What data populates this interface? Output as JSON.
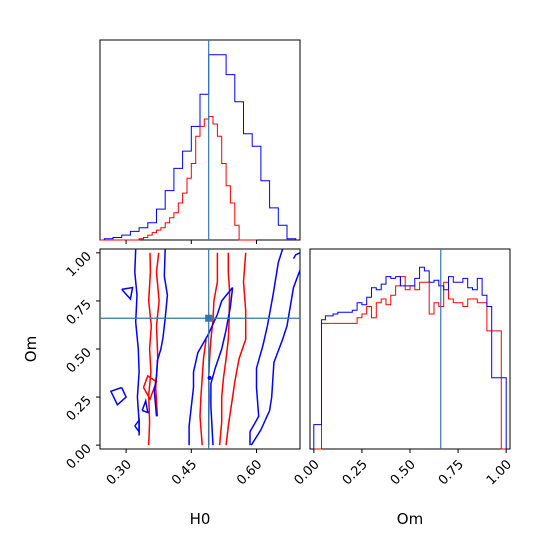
{
  "chart_data": [
    {
      "panel": "H0 marginal",
      "type": "step-histogram",
      "x_range": [
        0.24,
        0.7
      ],
      "truth_x": 0.49,
      "series": [
        {
          "color": "#ff0000",
          "bins": [
            0.24,
            0.25,
            0.26,
            0.27,
            0.28,
            0.29,
            0.3,
            0.31,
            0.32,
            0.33,
            0.34,
            0.35,
            0.36,
            0.37,
            0.38,
            0.39,
            0.4,
            0.41,
            0.42,
            0.43,
            0.44,
            0.45,
            0.46,
            0.47,
            0.48,
            0.49,
            0.5,
            0.51,
            0.52,
            0.53,
            0.54,
            0.55,
            0.56,
            0.57,
            0.58,
            0.59
          ],
          "counts": [
            0,
            0,
            0,
            0,
            0,
            0,
            0,
            0,
            0,
            1,
            2,
            4,
            6,
            8,
            10,
            14,
            18,
            22,
            30,
            38,
            50,
            62,
            84,
            92,
            98,
            100,
            94,
            84,
            62,
            44,
            30,
            12,
            0,
            0,
            0,
            0
          ]
        },
        {
          "color": "#0000ff",
          "bins": [
            0.25,
            0.27,
            0.29,
            0.31,
            0.33,
            0.35,
            0.37,
            0.39,
            0.41,
            0.43,
            0.45,
            0.47,
            0.49,
            0.51,
            0.53,
            0.55,
            0.57,
            0.59,
            0.61,
            0.63,
            0.65,
            0.67
          ],
          "counts": [
            1,
            2,
            4,
            7,
            10,
            14,
            25,
            40,
            58,
            72,
            92,
            118,
            150,
            150,
            134,
            112,
            86,
            76,
            48,
            26,
            12,
            1
          ]
        }
      ]
    },
    {
      "panel": "H0 vs Om contours",
      "type": "contour",
      "x_range": [
        0.24,
        0.7
      ],
      "y_range": [
        -0.02,
        1.02
      ],
      "truth_point": [
        0.49,
        0.66
      ],
      "series": [
        {
          "color": "#ff0000",
          "lines": [
            [
              [
                0.355,
                1.0
              ],
              [
                0.356,
                0.9
              ],
              [
                0.352,
                0.75
              ],
              [
                0.358,
                0.62
              ],
              [
                0.354,
                0.5
              ],
              [
                0.357,
                0.38
              ],
              [
                0.352,
                0.26
              ],
              [
                0.354,
                0.12
              ],
              [
                0.352,
                0.0
              ]
            ],
            [
              [
                0.375,
                1.0
              ],
              [
                0.37,
                0.9
              ],
              [
                0.376,
                0.75
              ],
              [
                0.37,
                0.62
              ],
              [
                0.373,
                0.45
              ],
              [
                0.368,
                0.3
              ],
              [
                0.372,
                0.15
              ]
            ],
            [
              [
                0.34,
                0.3
              ],
              [
                0.35,
                0.36
              ],
              [
                0.37,
                0.33
              ],
              [
                0.355,
                0.24
              ],
              [
                0.34,
                0.3
              ]
            ],
            [
              [
                0.475,
                0.0
              ],
              [
                0.47,
                0.15
              ],
              [
                0.472,
                0.25
              ],
              [
                0.475,
                0.35
              ],
              [
                0.478,
                0.45
              ],
              [
                0.484,
                0.55
              ]
            ],
            [
              [
                0.49,
                0.0
              ],
              [
                0.49,
                0.12
              ],
              [
                0.491,
                0.25
              ],
              [
                0.49,
                0.35
              ],
              [
                0.492,
                0.45
              ],
              [
                0.495,
                0.55
              ],
              [
                0.5,
                0.65
              ],
              [
                0.502,
                0.75
              ],
              [
                0.51,
                0.85
              ],
              [
                0.51,
                1.0
              ]
            ],
            [
              [
                0.515,
                0.0
              ],
              [
                0.52,
                0.12
              ],
              [
                0.52,
                0.25
              ],
              [
                0.524,
                0.35
              ],
              [
                0.53,
                0.45
              ],
              [
                0.535,
                0.55
              ],
              [
                0.537,
                0.65
              ],
              [
                0.538,
                0.8
              ],
              [
                0.535,
                0.9
              ],
              [
                0.535,
                1.0
              ]
            ],
            [
              [
                0.53,
                0.0
              ],
              [
                0.535,
                0.1
              ],
              [
                0.545,
                0.25
              ],
              [
                0.55,
                0.33
              ],
              [
                0.56,
                0.45
              ],
              [
                0.575,
                0.55
              ],
              [
                0.575,
                0.7
              ],
              [
                0.57,
                0.85
              ],
              [
                0.575,
                1.0
              ]
            ]
          ]
        },
        {
          "color": "#0000ff",
          "lines": [
            [
              [
                0.322,
                1.02
              ],
              [
                0.32,
                0.9
              ],
              [
                0.325,
                0.78
              ],
              [
                0.322,
                0.64
              ],
              [
                0.328,
                0.5
              ],
              [
                0.33,
                0.38
              ],
              [
                0.326,
                0.25
              ],
              [
                0.33,
                0.12
              ],
              [
                0.33,
                0.05
              ]
            ],
            [
              [
                0.39,
                1.02
              ],
              [
                0.388,
                0.88
              ],
              [
                0.395,
                0.78
              ],
              [
                0.39,
                0.66
              ],
              [
                0.385,
                0.56
              ],
              [
                0.38,
                0.5
              ],
              [
                0.372,
                0.44
              ],
              [
                0.37,
                0.36
              ],
              [
                0.365,
                0.28
              ],
              [
                0.368,
                0.2
              ],
              [
                0.37,
                0.15
              ]
            ],
            [
              [
                0.29,
                0.3
              ],
              [
                0.265,
                0.28
              ],
              [
                0.28,
                0.21
              ],
              [
                0.3,
                0.25
              ],
              [
                0.29,
                0.3
              ]
            ],
            [
              [
                0.29,
                0.81
              ],
              [
                0.315,
                0.82
              ],
              [
                0.31,
                0.76
              ],
              [
                0.29,
                0.81
              ]
            ],
            [
              [
                0.337,
                0.18
              ],
              [
                0.345,
                0.23
              ],
              [
                0.35,
                0.17
              ],
              [
                0.337,
                0.18
              ]
            ],
            [
              [
                0.32,
                0.1
              ],
              [
                0.33,
                0.13
              ],
              [
                0.33,
                0.07
              ],
              [
                0.32,
                0.1
              ]
            ],
            [
              [
                0.445,
                0.0
              ],
              [
                0.445,
                0.1
              ],
              [
                0.45,
                0.2
              ],
              [
                0.455,
                0.3
              ],
              [
                0.455,
                0.38
              ],
              [
                0.465,
                0.48
              ],
              [
                0.49,
                0.58
              ],
              [
                0.51,
                0.68
              ],
              [
                0.52,
                0.75
              ],
              [
                0.545,
                0.82
              ]
            ],
            [
              [
                0.545,
                0.82
              ],
              [
                0.54,
                0.72
              ],
              [
                0.53,
                0.6
              ],
              [
                0.52,
                0.5
              ],
              [
                0.505,
                0.4
              ],
              [
                0.495,
                0.32
              ],
              [
                0.495,
                0.2
              ],
              [
                0.5,
                0.0
              ]
            ],
            [
              [
                0.585,
                0.0
              ],
              [
                0.585,
                0.07
              ],
              [
                0.605,
                0.15
              ],
              [
                0.6,
                0.3
              ],
              [
                0.6,
                0.4
              ],
              [
                0.615,
                0.52
              ],
              [
                0.625,
                0.62
              ],
              [
                0.638,
                0.78
              ],
              [
                0.65,
                0.95
              ],
              [
                0.66,
                1.02
              ]
            ],
            [
              [
                0.685,
                0.97
              ],
              [
                0.69,
                0.99
              ],
              [
                0.7,
                1.0
              ]
            ],
            [
              [
                0.7,
                0.91
              ],
              [
                0.685,
                0.82
              ],
              [
                0.67,
                0.62
              ],
              [
                0.66,
                0.55
              ],
              [
                0.64,
                0.43
              ],
              [
                0.635,
                0.25
              ],
              [
                0.63,
                0.18
              ],
              [
                0.61,
                0.08
              ],
              [
                0.588,
                0.0
              ]
            ]
          ],
          "dots": [
            [
              0.492,
              0.35
            ]
          ]
        }
      ]
    },
    {
      "panel": "Om marginal",
      "type": "step-histogram",
      "x_range": [
        -0.02,
        1.02
      ],
      "truth_x": 0.66,
      "series": [
        {
          "color": "#ff0000",
          "bins": [
            0.0,
            0.02,
            0.04,
            0.06,
            0.08,
            0.1,
            0.125,
            0.15,
            0.2,
            0.225,
            0.25,
            0.275,
            0.3,
            0.325,
            0.35,
            0.375,
            0.4,
            0.425,
            0.45,
            0.475,
            0.5,
            0.525,
            0.55,
            0.575,
            0.6,
            0.625,
            0.65,
            0.675,
            0.7,
            0.725,
            0.75,
            0.775,
            0.8,
            0.825,
            0.85,
            0.875,
            0.9,
            0.925,
            0.95,
            0.975,
            1.0
          ],
          "counts": [
            0,
            0,
            67,
            67,
            67,
            67,
            67,
            67,
            67,
            70,
            72,
            76,
            70,
            78,
            80,
            77,
            82,
            87,
            92,
            85,
            87,
            85,
            89,
            89,
            72,
            78,
            76,
            89,
            80,
            78,
            78,
            76,
            80,
            80,
            78,
            78,
            63,
            63,
            63,
            0
          ]
        },
        {
          "color": "#0000ff",
          "bins": [
            0.0,
            0.02,
            0.04,
            0.06,
            0.08,
            0.1,
            0.125,
            0.15,
            0.2,
            0.225,
            0.25,
            0.275,
            0.3,
            0.325,
            0.35,
            0.375,
            0.4,
            0.425,
            0.45,
            0.475,
            0.5,
            0.525,
            0.55,
            0.575,
            0.6,
            0.625,
            0.65,
            0.675,
            0.7,
            0.725,
            0.75,
            0.775,
            0.8,
            0.825,
            0.85,
            0.875,
            0.9,
            0.925,
            0.95,
            0.975,
            1.0
          ],
          "counts": [
            13,
            13,
            69,
            71,
            71,
            72,
            73,
            73,
            74,
            78,
            77,
            81,
            86,
            85,
            88,
            92,
            91,
            92,
            87,
            87,
            87,
            91,
            97,
            95,
            89,
            90,
            87,
            85,
            92,
            89,
            89,
            91,
            86,
            85,
            91,
            82,
            76,
            38,
            38,
            38
          ]
        }
      ]
    }
  ],
  "axes": {
    "h0_label": "H0",
    "om_label": "Om",
    "h0_ticks": [
      "0.30",
      "0.45",
      "0.60"
    ],
    "h0_tick_values": [
      0.3,
      0.45,
      0.6
    ],
    "om_ticks": [
      "0.00",
      "0.25",
      "0.50",
      "0.75",
      "1.00"
    ],
    "om_tick_values": [
      0.0,
      0.25,
      0.5,
      0.75,
      1.0
    ]
  },
  "colors": {
    "red": "#ff0000",
    "blue": "#0000ff",
    "truth": "#3377aa"
  }
}
